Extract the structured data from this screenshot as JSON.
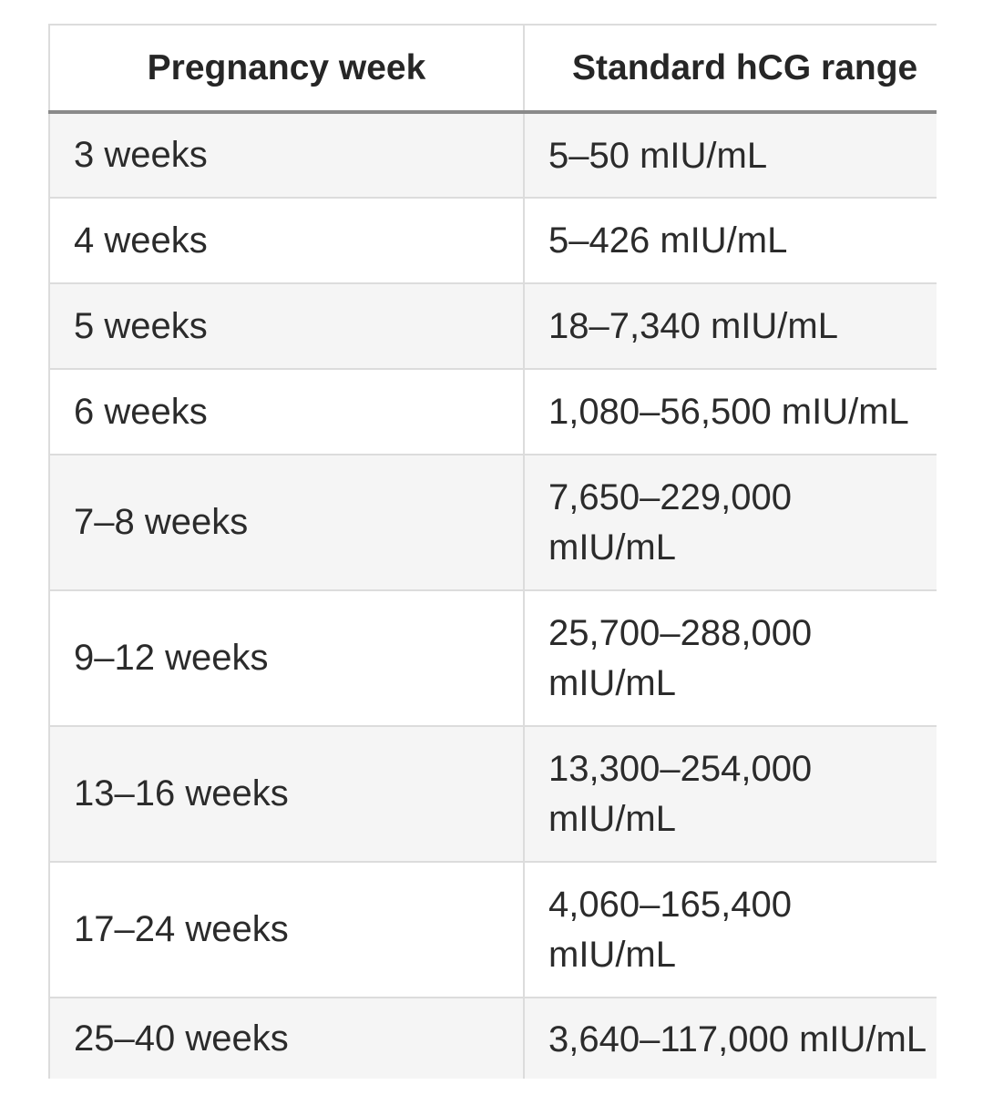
{
  "table": {
    "headers": [
      "Pregnancy week",
      "Standard hCG range"
    ],
    "rows": [
      {
        "week": "3 weeks",
        "range": [
          "5–50 mIU/mL"
        ]
      },
      {
        "week": "4 weeks",
        "range": [
          "5–426 mIU/mL"
        ]
      },
      {
        "week": "5 weeks",
        "range": [
          "18–7,340 mIU/mL"
        ]
      },
      {
        "week": "6 weeks",
        "range": [
          "1,080–56,500 mIU/mL"
        ]
      },
      {
        "week": "7–8 weeks",
        "range": [
          "7,650–229,000",
          "mIU/mL"
        ]
      },
      {
        "week": "9–12 weeks",
        "range": [
          "25,700–288,000",
          "mIU/mL"
        ]
      },
      {
        "week": "13–16 weeks",
        "range": [
          "13,300–254,000",
          "mIU/mL"
        ]
      },
      {
        "week": "17–24 weeks",
        "range": [
          "4,060–165,400",
          "mIU/mL"
        ]
      },
      {
        "week": "25–40 weeks",
        "range": [
          "3,640–117,000 mIU/mL"
        ]
      }
    ]
  }
}
